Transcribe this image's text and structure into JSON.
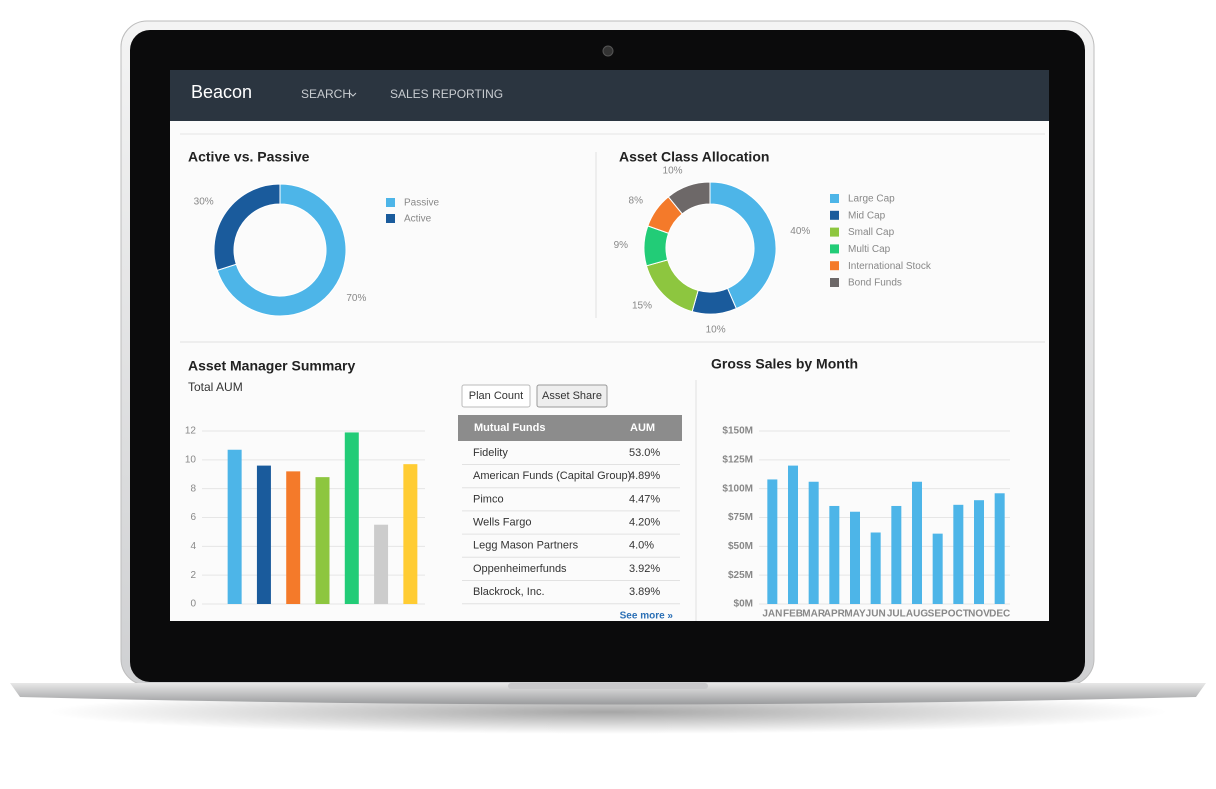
{
  "nav": {
    "brand": "Beacon",
    "items": [
      "SEARCH",
      "SALES REPORTING"
    ]
  },
  "chart_data": [
    {
      "type": "donut",
      "title": "Active vs. Passive",
      "categories": [
        "Passive",
        "Active"
      ],
      "values": [
        70,
        30
      ],
      "value_labels": [
        "70%",
        "30%"
      ],
      "colors": [
        "#4db5e8",
        "#1a5b9c"
      ]
    },
    {
      "type": "donut",
      "title": "Asset Class Allocation",
      "categories": [
        "Large Cap",
        "Mid Cap",
        "Small Cap",
        "Multi Cap",
        "International Stock",
        "Bond Funds"
      ],
      "values": [
        40,
        10,
        15,
        9,
        8,
        10
      ],
      "value_labels": [
        "40%",
        "10%",
        "15%",
        "9%",
        "8%",
        "10%"
      ],
      "colors": [
        "#4db5e8",
        "#1a5b9c",
        "#8dc63f",
        "#22cc77",
        "#f47a2a",
        "#6d6868"
      ]
    },
    {
      "type": "bar",
      "title": "Asset Manager Summary",
      "subtitle": "Total AUM",
      "categories": [
        null,
        null,
        null,
        null,
        null,
        null,
        null
      ],
      "values": [
        10.7,
        9.6,
        9.2,
        8.8,
        11.9,
        5.5,
        9.7
      ],
      "colors": [
        "#4db5e8",
        "#1a5b9c",
        "#f47a2a",
        "#8dc63f",
        "#22cc77",
        "#cccccc",
        "#ffcc33"
      ],
      "ylim": [
        0,
        12
      ],
      "yticks": [
        0,
        2,
        4,
        6,
        8,
        10,
        12
      ],
      "grid": true
    },
    {
      "type": "bar",
      "title": "Gross Sales by Month",
      "categories": [
        "JAN",
        "FEB",
        "MAR",
        "APR",
        "MAY",
        "JUN",
        "JUL",
        "AUG",
        "SEP",
        "OCT",
        "NOV",
        "DEC"
      ],
      "values": [
        108000000,
        120000000,
        106000000,
        85000000,
        80000000,
        62000000,
        85000000,
        106000000,
        61000000,
        86000000,
        90000000,
        96000000
      ],
      "color": "#4db5e8",
      "ylim": [
        0,
        150000000
      ],
      "yticks": [
        {
          "value": 0,
          "label": "$0M"
        },
        {
          "value": 25000000,
          "label": "$25M"
        },
        {
          "value": 50000000,
          "label": "$50M"
        },
        {
          "value": 75000000,
          "label": "$75M"
        },
        {
          "value": 100000000,
          "label": "$100M"
        },
        {
          "value": 125000000,
          "label": "$125M"
        },
        {
          "value": 150000000,
          "label": "$150M"
        }
      ],
      "grid": true
    }
  ],
  "table": {
    "buttons": [
      "Plan Count",
      "Asset Share"
    ],
    "header": [
      "Mutual Funds",
      "AUM"
    ],
    "rows": [
      [
        "Fidelity",
        "53.0%"
      ],
      [
        "American Funds (Capital Group)",
        "4.89%"
      ],
      [
        "Pimco",
        "4.47%"
      ],
      [
        "Wells Fargo",
        "4.20%"
      ],
      [
        "Legg Mason Partners",
        "4.0%"
      ],
      [
        "Oppenheimerfunds",
        "3.92%"
      ],
      [
        "Blackrock, Inc.",
        "3.89%"
      ]
    ],
    "more": "See more »"
  }
}
